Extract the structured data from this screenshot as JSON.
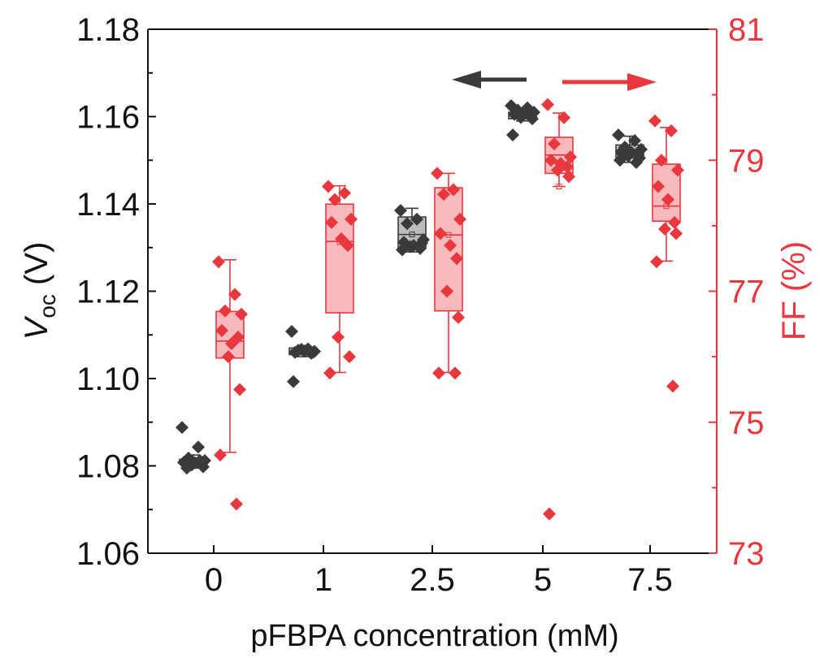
{
  "chart_data": {
    "type": "box",
    "xlabel": "pFBPA concentration (mM)",
    "categories": [
      "0",
      "1",
      "2.5",
      "5",
      "7.5"
    ],
    "y_left": {
      "label_main": "V",
      "label_sub": "oc",
      "label_unit": " (V)",
      "lim": [
        1.06,
        1.18
      ],
      "ticks": [
        "1.06",
        "1.08",
        "1.10",
        "1.12",
        "1.14",
        "1.16",
        "1.18"
      ],
      "color": "#1a1a1a"
    },
    "y_right": {
      "label": "FF (%)",
      "lim": [
        73,
        81
      ],
      "ticks": [
        "73",
        "75",
        "77",
        "79",
        "81"
      ],
      "color": "#e8373d"
    },
    "series": [
      {
        "axis": "left",
        "color": "#3a3a3a",
        "box_fill": "#bdbdbd",
        "boxes": [
          {
            "q1": 1.0805,
            "median": 1.081,
            "q3": 1.0815,
            "whisker_low": 1.0795,
            "whisker_high": 1.0825,
            "mean": 1.081
          },
          {
            "q1": 1.1055,
            "median": 1.106,
            "q3": 1.107,
            "whisker_low": 1.105,
            "whisker_high": 1.1075,
            "mean": 1.106
          },
          {
            "q1": 1.13,
            "median": 1.133,
            "q3": 1.137,
            "whisker_low": 1.129,
            "whisker_high": 1.139,
            "mean": 1.133
          },
          {
            "q1": 1.1595,
            "median": 1.1605,
            "q3": 1.161,
            "whisker_low": 1.159,
            "whisker_high": 1.162,
            "mean": 1.1605
          },
          {
            "q1": 1.1505,
            "median": 1.1515,
            "q3": 1.1535,
            "whisker_low": 1.1495,
            "whisker_high": 1.1555,
            "mean": 1.152
          }
        ],
        "points": [
          [
            1.0888,
            1.0843,
            1.0818,
            1.0812,
            1.081,
            1.0807,
            1.0805,
            1.0802,
            1.0798,
            1.0808,
            1.0812,
            1.0795
          ],
          [
            1.1108,
            1.1068,
            1.1065,
            1.1062,
            1.106,
            1.1063,
            1.1058,
            1.1067,
            1.106,
            1.0993
          ],
          [
            1.1385,
            1.1365,
            1.1355,
            1.1318,
            1.1312,
            1.1305,
            1.1298,
            1.1302,
            1.131,
            1.1295
          ],
          [
            1.1625,
            1.162,
            1.1615,
            1.161,
            1.1605,
            1.1608,
            1.16,
            1.1598,
            1.1595,
            1.1558
          ],
          [
            1.1558,
            1.1545,
            1.153,
            1.1525,
            1.152,
            1.1518,
            1.1515,
            1.151,
            1.1505,
            1.15,
            1.1495,
            1.1512
          ]
        ]
      },
      {
        "axis": "right",
        "color": "#e8373d",
        "box_fill": "#f7b9bc",
        "boxes": [
          {
            "q1": 75.98,
            "median": 76.24,
            "q3": 76.69,
            "whisker_low": 74.54,
            "whisker_high": 77.48,
            "mean": 76.2
          },
          {
            "q1": 76.67,
            "median": 77.76,
            "q3": 78.33,
            "whisker_low": 75.76,
            "whisker_high": 78.61,
            "mean": 77.75
          },
          {
            "q1": 76.7,
            "median": 77.86,
            "q3": 78.58,
            "whisker_low": 75.76,
            "whisker_high": 78.8,
            "mean": 77.86
          },
          {
            "q1": 78.8,
            "median": 79.08,
            "q3": 79.35,
            "whisker_low": 78.6,
            "whisker_high": 79.72,
            "mean": 78.6
          },
          {
            "q1": 78.07,
            "median": 78.3,
            "q3": 78.94,
            "whisker_low": 77.46,
            "whisker_high": 79.5,
            "mean": 78.3
          }
        ],
        "points": [
          [
            77.45,
            76.95,
            76.7,
            76.65,
            76.4,
            76.2,
            76.3,
            76.0,
            75.5,
            74.5,
            73.75
          ],
          [
            78.6,
            78.5,
            78.4,
            78.1,
            78.05,
            77.8,
            77.7,
            76.3,
            76.0,
            75.75
          ],
          [
            78.8,
            78.55,
            78.48,
            78.1,
            77.88,
            77.7,
            77.5,
            77.0,
            76.6,
            75.75,
            75.75
          ],
          [
            79.85,
            79.65,
            79.25,
            79.05,
            79.0,
            78.95,
            78.9,
            78.85,
            78.75,
            73.6
          ],
          [
            79.6,
            79.45,
            79.0,
            78.85,
            78.6,
            78.4,
            78.05,
            77.95,
            77.88,
            77.45,
            75.55
          ]
        ]
      }
    ],
    "arrows": [
      {
        "direction": "left",
        "color": "#3a3a3a"
      },
      {
        "direction": "right",
        "color": "#e8373d"
      }
    ]
  }
}
